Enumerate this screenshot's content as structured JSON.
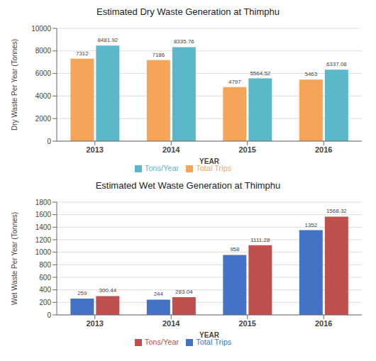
{
  "chart_data": [
    {
      "type": "bar",
      "title": "Estimated Dry Waste Generation at Thimphu",
      "xlabel": "YEAR",
      "ylabel": "Dry Waste Per Year (Tonnes)",
      "categories": [
        "2013",
        "2014",
        "2015",
        "2016"
      ],
      "series": [
        {
          "name": "Total Trips",
          "color": "#F5A55A",
          "values": [
            7312,
            7186,
            4797,
            5463
          ]
        },
        {
          "name": "Tons/Year",
          "color": "#5BB8C8",
          "values": [
            8481.92,
            8335.76,
            5564.52,
            6337.08
          ]
        }
      ],
      "ylim": [
        0,
        10000
      ],
      "yticks": [
        0,
        2000,
        4000,
        6000,
        8000,
        10000
      ],
      "grid": true,
      "data_labels": true,
      "legend": "bottom"
    },
    {
      "type": "bar",
      "title": "Estimated Wet Waste Generation at Thimphu",
      "xlabel": "YEAR",
      "ylabel": "Wet Waste Per Year (Tonnes)",
      "categories": [
        "2013",
        "2014",
        "2015",
        "2016"
      ],
      "series": [
        {
          "name": "Total Trips",
          "color": "#4472C4",
          "values": [
            259,
            244,
            958,
            1352
          ]
        },
        {
          "name": "Tons/Year",
          "color": "#C0504D",
          "values": [
            300.44,
            283.04,
            1111.28,
            1568.32
          ]
        }
      ],
      "ylim": [
        0,
        1800
      ],
      "yticks": [
        0,
        200,
        400,
        600,
        800,
        1000,
        1200,
        1400,
        1600,
        1800
      ],
      "grid": true,
      "data_labels": true,
      "legend": "bottom"
    }
  ]
}
